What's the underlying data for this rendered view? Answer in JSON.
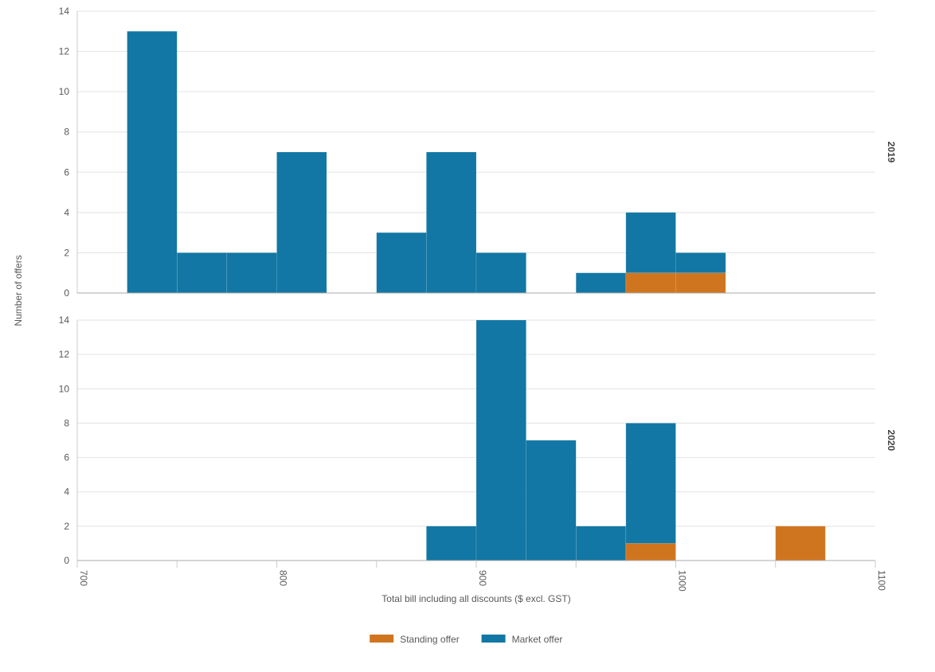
{
  "chart_data": {
    "type": "bar",
    "subtype": "stacked-histogram",
    "xlabel": "Total bill including all discounts ($ excl. GST)",
    "ylabel": "Number of offers",
    "xlim": [
      700,
      1100
    ],
    "x_ticks": [
      700,
      800,
      900,
      1000,
      1100
    ],
    "bin_width": 25,
    "bin_starts": [
      725,
      750,
      775,
      800,
      825,
      850,
      875,
      900,
      925,
      950,
      975,
      1000,
      1025,
      1050
    ],
    "ylim": [
      0,
      14
    ],
    "y_ticks": [
      0,
      2,
      4,
      6,
      8,
      10,
      12,
      14
    ],
    "grid": true,
    "legend_position": "bottom-center",
    "series": [
      {
        "name": "Standing offer",
        "color": "#d0751f"
      },
      {
        "name": "Market offer",
        "color": "#1277a4"
      }
    ],
    "facets": [
      {
        "label": "2019",
        "values": {
          "Standing offer": [
            0,
            0,
            0,
            0,
            0,
            0,
            0,
            0,
            0,
            0,
            1,
            1,
            0,
            0
          ],
          "Market offer": [
            13,
            2,
            2,
            7,
            0,
            3,
            7,
            2,
            0,
            1,
            3,
            1,
            0,
            0
          ]
        }
      },
      {
        "label": "2020",
        "values": {
          "Standing offer": [
            0,
            0,
            0,
            0,
            0,
            0,
            0,
            0,
            0,
            0,
            1,
            0,
            0,
            2
          ],
          "Market offer": [
            0,
            0,
            0,
            0,
            0,
            0,
            2,
            14,
            7,
            2,
            7,
            0,
            0,
            0
          ]
        }
      }
    ]
  }
}
